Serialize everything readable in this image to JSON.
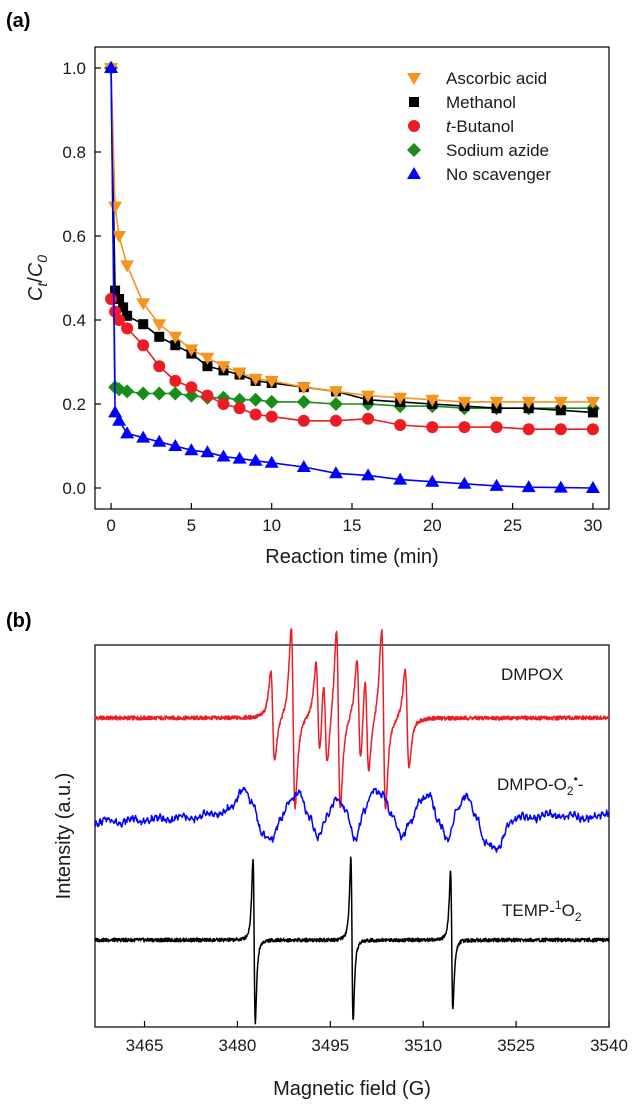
{
  "figure": {
    "panel_a_label": "(a)",
    "panel_b_label": "(b)"
  },
  "chart_data": [
    {
      "type": "line",
      "panel": "(a)",
      "xlabel": "Reaction time (min)",
      "ylabel": "Ct/C0",
      "ylabel_parts": [
        "C",
        "t",
        "/",
        "C",
        "0"
      ],
      "xlim": [
        -1,
        31
      ],
      "ylim": [
        -0.05,
        1.05
      ],
      "xticks": [
        0,
        5,
        10,
        15,
        20,
        25,
        30
      ],
      "yticks": [
        0.0,
        0.2,
        0.4,
        0.6,
        0.8,
        1.0
      ],
      "xtick_labels": [
        "0",
        "5",
        "10",
        "15",
        "20",
        "25",
        "30"
      ],
      "ytick_labels": [
        "0.0",
        "0.2",
        "0.4",
        "0.6",
        "0.8",
        "1.0"
      ],
      "grid": false,
      "legend_position": "top-right",
      "series": [
        {
          "name": "Ascorbic acid",
          "color": "#f7941d",
          "marker": "triangle-down",
          "x": [
            0,
            0.25,
            0.5,
            1,
            2,
            3,
            4,
            5,
            6,
            7,
            8,
            9,
            10,
            12,
            14,
            16,
            18,
            20,
            22,
            24,
            26,
            28,
            30
          ],
          "y": [
            1.0,
            0.67,
            0.6,
            0.53,
            0.44,
            0.39,
            0.36,
            0.33,
            0.31,
            0.29,
            0.275,
            0.26,
            0.255,
            0.24,
            0.23,
            0.22,
            0.215,
            0.21,
            0.205,
            0.205,
            0.205,
            0.205,
            0.205
          ]
        },
        {
          "name": "Methanol",
          "color": "#000000",
          "marker": "square",
          "x": [
            0,
            0.25,
            0.5,
            0.75,
            1,
            2,
            3,
            4,
            5,
            6,
            7,
            8,
            9,
            10,
            12,
            14,
            16,
            18,
            20,
            22,
            24,
            26,
            28,
            30
          ],
          "y": [
            1.0,
            0.47,
            0.45,
            0.43,
            0.41,
            0.39,
            0.36,
            0.34,
            0.32,
            0.29,
            0.28,
            0.27,
            0.255,
            0.25,
            0.24,
            0.23,
            0.21,
            0.205,
            0.2,
            0.195,
            0.19,
            0.19,
            0.185,
            0.18
          ]
        },
        {
          "name": "t-Butanol",
          "name_italic_part": "t",
          "name_rest": "-Butanol",
          "color": "#ed1c24",
          "marker": "circle",
          "x": [
            0,
            0.25,
            0.5,
            1,
            2,
            3,
            4,
            5,
            6,
            7,
            8,
            9,
            10,
            12,
            14,
            16,
            18,
            20,
            22,
            24,
            26,
            28,
            30
          ],
          "y": [
            0.45,
            0.42,
            0.4,
            0.38,
            0.34,
            0.29,
            0.255,
            0.24,
            0.22,
            0.2,
            0.19,
            0.175,
            0.17,
            0.16,
            0.16,
            0.165,
            0.15,
            0.145,
            0.145,
            0.145,
            0.14,
            0.14,
            0.14
          ]
        },
        {
          "name": "Sodium azide",
          "color": "#1a8c1a",
          "marker": "diamond",
          "x": [
            0,
            0.25,
            0.5,
            1,
            2,
            3,
            4,
            5,
            6,
            7,
            8,
            9,
            10,
            12,
            14,
            16,
            18,
            20,
            22,
            24,
            26,
            28,
            30
          ],
          "y": [
            1.0,
            0.24,
            0.235,
            0.23,
            0.225,
            0.225,
            0.225,
            0.22,
            0.215,
            0.215,
            0.21,
            0.21,
            0.205,
            0.205,
            0.2,
            0.2,
            0.195,
            0.195,
            0.19,
            0.19,
            0.19,
            0.19,
            0.19
          ]
        },
        {
          "name": "No scavenger",
          "color": "#0000ff",
          "marker": "triangle-up",
          "x": [
            0,
            0.25,
            0.5,
            1,
            2,
            3,
            4,
            5,
            6,
            7,
            8,
            9,
            10,
            12,
            14,
            16,
            18,
            20,
            22,
            24,
            26,
            28,
            30
          ],
          "y": [
            1.0,
            0.18,
            0.16,
            0.13,
            0.12,
            0.11,
            0.1,
            0.09,
            0.085,
            0.075,
            0.07,
            0.065,
            0.06,
            0.05,
            0.035,
            0.03,
            0.02,
            0.015,
            0.01,
            0.005,
            0.002,
            0.001,
            0.0
          ]
        }
      ]
    },
    {
      "type": "line",
      "panel": "(b)",
      "xlabel": "Magnetic field (G)",
      "ylabel": "Intensity (a.u.)",
      "xlim": [
        3457,
        3540
      ],
      "xticks": [
        3465,
        3480,
        3495,
        3510,
        3525,
        3540
      ],
      "xtick_labels": [
        "3465",
        "3480",
        "3495",
        "3510",
        "3525",
        "3540"
      ],
      "grid": false,
      "series": [
        {
          "name": "DMPOX",
          "label_parts": [
            "DMPOX"
          ],
          "color": "#ed1c24",
          "peaks": [
            {
              "x": 3485.7,
              "amp": 0.5
            },
            {
              "x": 3489.0,
              "amp": 1.0
            },
            {
              "x": 3493.0,
              "amp": 0.55
            },
            {
              "x": 3494.2,
              "amp": 0.5
            },
            {
              "x": 3496.3,
              "amp": 1.0
            },
            {
              "x": 3499.6,
              "amp": 0.6
            },
            {
              "x": 3500.9,
              "amp": 0.55
            },
            {
              "x": 3503.6,
              "amp": 1.0
            },
            {
              "x": 3507.4,
              "amp": 0.55
            }
          ]
        },
        {
          "name": "DMPO-O2•-",
          "label_parts": [
            "DMPO-O",
            "2",
            "•",
            "-"
          ],
          "color": "#0000ff",
          "x": [
            3457.0,
            3459.0,
            3461.0,
            3463.0,
            3465.0,
            3467.0,
            3469.0,
            3471.0,
            3473.0,
            3475.0,
            3477.0,
            3479.0,
            3481.0,
            3482.5,
            3484.0,
            3485.5,
            3487.0,
            3488.5,
            3490.0,
            3491.5,
            3493.0,
            3494.5,
            3496.0,
            3497.5,
            3499.0,
            3500.5,
            3502.0,
            3503.5,
            3505.0,
            3506.5,
            3508.0,
            3509.5,
            3511.0,
            3512.5,
            3514.0,
            3515.5,
            3517.0,
            3518.5,
            3520.0,
            3522.0,
            3524.0,
            3526.0,
            3528.0,
            3530.0,
            3532.0,
            3534.0,
            3536.0,
            3538.0,
            3540.0
          ],
          "y": [
            -0.05,
            0.05,
            -0.02,
            0.06,
            0.0,
            0.08,
            0.02,
            0.1,
            0.04,
            0.15,
            0.12,
            0.25,
            0.55,
            0.3,
            -0.2,
            -0.3,
            0.05,
            0.35,
            0.5,
            0.1,
            -0.25,
            0.1,
            0.4,
            0.2,
            -0.3,
            0.2,
            0.55,
            0.45,
            0.1,
            -0.25,
            0.0,
            0.35,
            0.45,
            0.0,
            -0.3,
            0.2,
            0.45,
            0.1,
            -0.35,
            -0.45,
            0.0,
            0.1,
            0.05,
            0.15,
            0.08,
            0.12,
            0.05,
            0.1,
            0.15
          ]
        },
        {
          "name": "TEMP-1O2",
          "label_parts": [
            "TEMP-",
            "1",
            "O",
            "2"
          ],
          "color": "#000000",
          "peaks": [
            {
              "x": 3482.7,
              "amp": 1.0
            },
            {
              "x": 3498.5,
              "amp": 1.0
            },
            {
              "x": 3514.6,
              "amp": 0.85
            }
          ]
        }
      ]
    }
  ]
}
